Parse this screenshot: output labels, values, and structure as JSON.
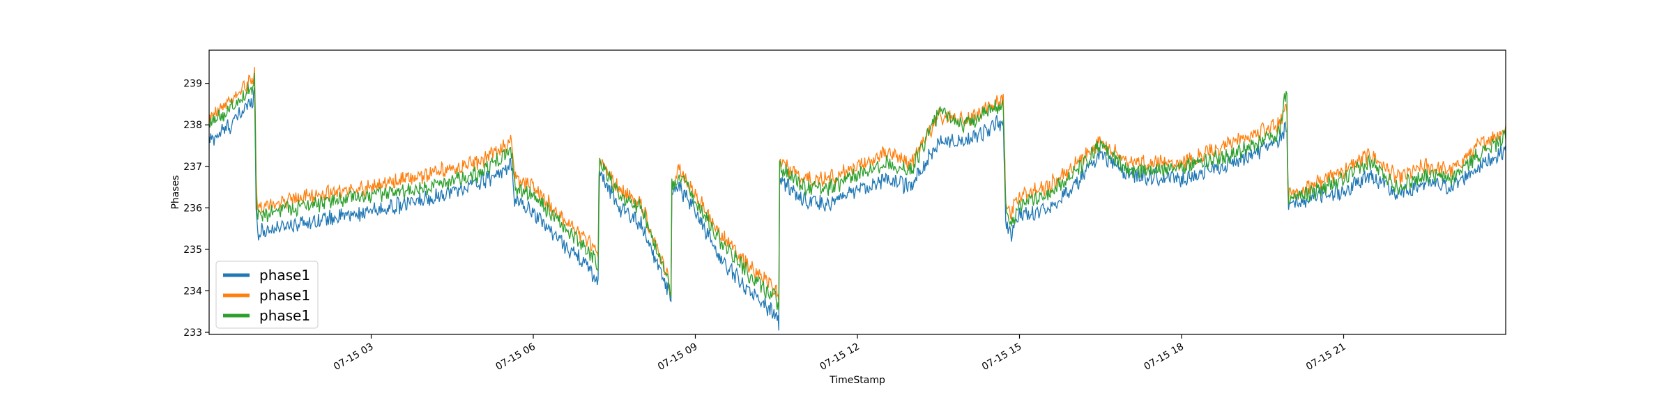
{
  "chart_data": {
    "type": "line",
    "title": "",
    "xlabel": "TimeStamp",
    "ylabel": "Phases",
    "xlim": [
      "07-15 00:00",
      "24:00"
    ],
    "ylim": [
      232.95,
      239.8
    ],
    "grid": false,
    "legend_position": "bottom-left",
    "x_ticks": [
      {
        "hour": 3,
        "label": "07-15 03"
      },
      {
        "hour": 6,
        "label": "07-15 06"
      },
      {
        "hour": 9,
        "label": "07-15 09"
      },
      {
        "hour": 12,
        "label": "07-15 12"
      },
      {
        "hour": 15,
        "label": "07-15 15"
      },
      {
        "hour": 18,
        "label": "07-15 18"
      },
      {
        "hour": 21,
        "label": "07-15 21"
      }
    ],
    "y_ticks": [
      233,
      234,
      235,
      236,
      237,
      238,
      239
    ],
    "x_hours": [
      0,
      0.4,
      0.8,
      0.85,
      0.86,
      0.9,
      1.5,
      2.0,
      3.0,
      4.0,
      5.0,
      5.6,
      5.65,
      6.0,
      6.5,
      7.0,
      7.2,
      7.22,
      7.6,
      8.0,
      8.5,
      8.55,
      8.56,
      8.7,
      9.0,
      9.5,
      10.0,
      10.5,
      10.55,
      10.56,
      11.0,
      11.5,
      12.0,
      12.5,
      13.0,
      13.5,
      14.0,
      14.7,
      14.75,
      14.85,
      15.0,
      15.5,
      16.0,
      16.5,
      17.0,
      18.0,
      19.0,
      19.8,
      19.95,
      19.97,
      20.5,
      21.0,
      21.5,
      22.0,
      22.5,
      23.0,
      23.5,
      24.0
    ],
    "series": [
      {
        "name": "phase1",
        "color": "#1f77b4",
        "values": [
          237.6,
          238.0,
          238.6,
          238.9,
          236.2,
          235.4,
          235.6,
          235.7,
          235.9,
          236.2,
          236.6,
          237.0,
          236.2,
          235.9,
          235.2,
          234.6,
          234.2,
          236.9,
          236.0,
          235.6,
          234.0,
          233.7,
          236.3,
          236.5,
          235.9,
          234.7,
          234.0,
          233.4,
          233.2,
          236.7,
          236.2,
          236.1,
          236.4,
          236.7,
          236.5,
          237.6,
          237.6,
          238.1,
          235.5,
          235.4,
          235.8,
          236.0,
          236.5,
          237.3,
          236.8,
          236.7,
          237.1,
          237.6,
          238.0,
          236.0,
          236.3,
          236.4,
          236.8,
          236.3,
          236.6,
          236.5,
          237.0,
          237.4
        ]
      },
      {
        "name": "phase1",
        "color": "#ff7f0e",
        "values": [
          238.1,
          238.6,
          239.1,
          239.4,
          236.8,
          236.0,
          236.2,
          236.3,
          236.5,
          236.8,
          237.1,
          237.6,
          236.7,
          236.5,
          235.8,
          235.2,
          234.8,
          237.2,
          236.4,
          236.1,
          234.3,
          234.0,
          236.6,
          236.9,
          236.3,
          235.3,
          234.6,
          234.0,
          233.9,
          237.1,
          236.7,
          236.7,
          237.0,
          237.3,
          237.1,
          238.2,
          238.1,
          238.6,
          236.0,
          235.9,
          236.3,
          236.5,
          237.0,
          237.6,
          237.1,
          237.1,
          237.6,
          238.0,
          238.5,
          236.3,
          236.6,
          236.9,
          237.3,
          236.7,
          237.0,
          236.9,
          237.5,
          237.9
        ]
      },
      {
        "name": "phase1",
        "color": "#2ca02c",
        "values": [
          238.0,
          238.4,
          238.9,
          239.2,
          236.6,
          235.8,
          236.0,
          236.1,
          236.3,
          236.5,
          236.8,
          237.4,
          236.5,
          236.3,
          235.6,
          235.0,
          234.6,
          237.1,
          236.3,
          236.0,
          234.2,
          233.9,
          236.5,
          236.8,
          236.2,
          235.1,
          234.4,
          233.8,
          233.6,
          237.0,
          236.5,
          236.5,
          236.8,
          237.1,
          236.9,
          238.3,
          238.0,
          238.5,
          235.8,
          235.6,
          236.1,
          236.3,
          236.8,
          237.5,
          236.9,
          237.0,
          237.3,
          237.8,
          238.9,
          236.2,
          236.4,
          236.7,
          237.1,
          236.5,
          236.8,
          236.7,
          237.3,
          237.7
        ]
      }
    ]
  }
}
